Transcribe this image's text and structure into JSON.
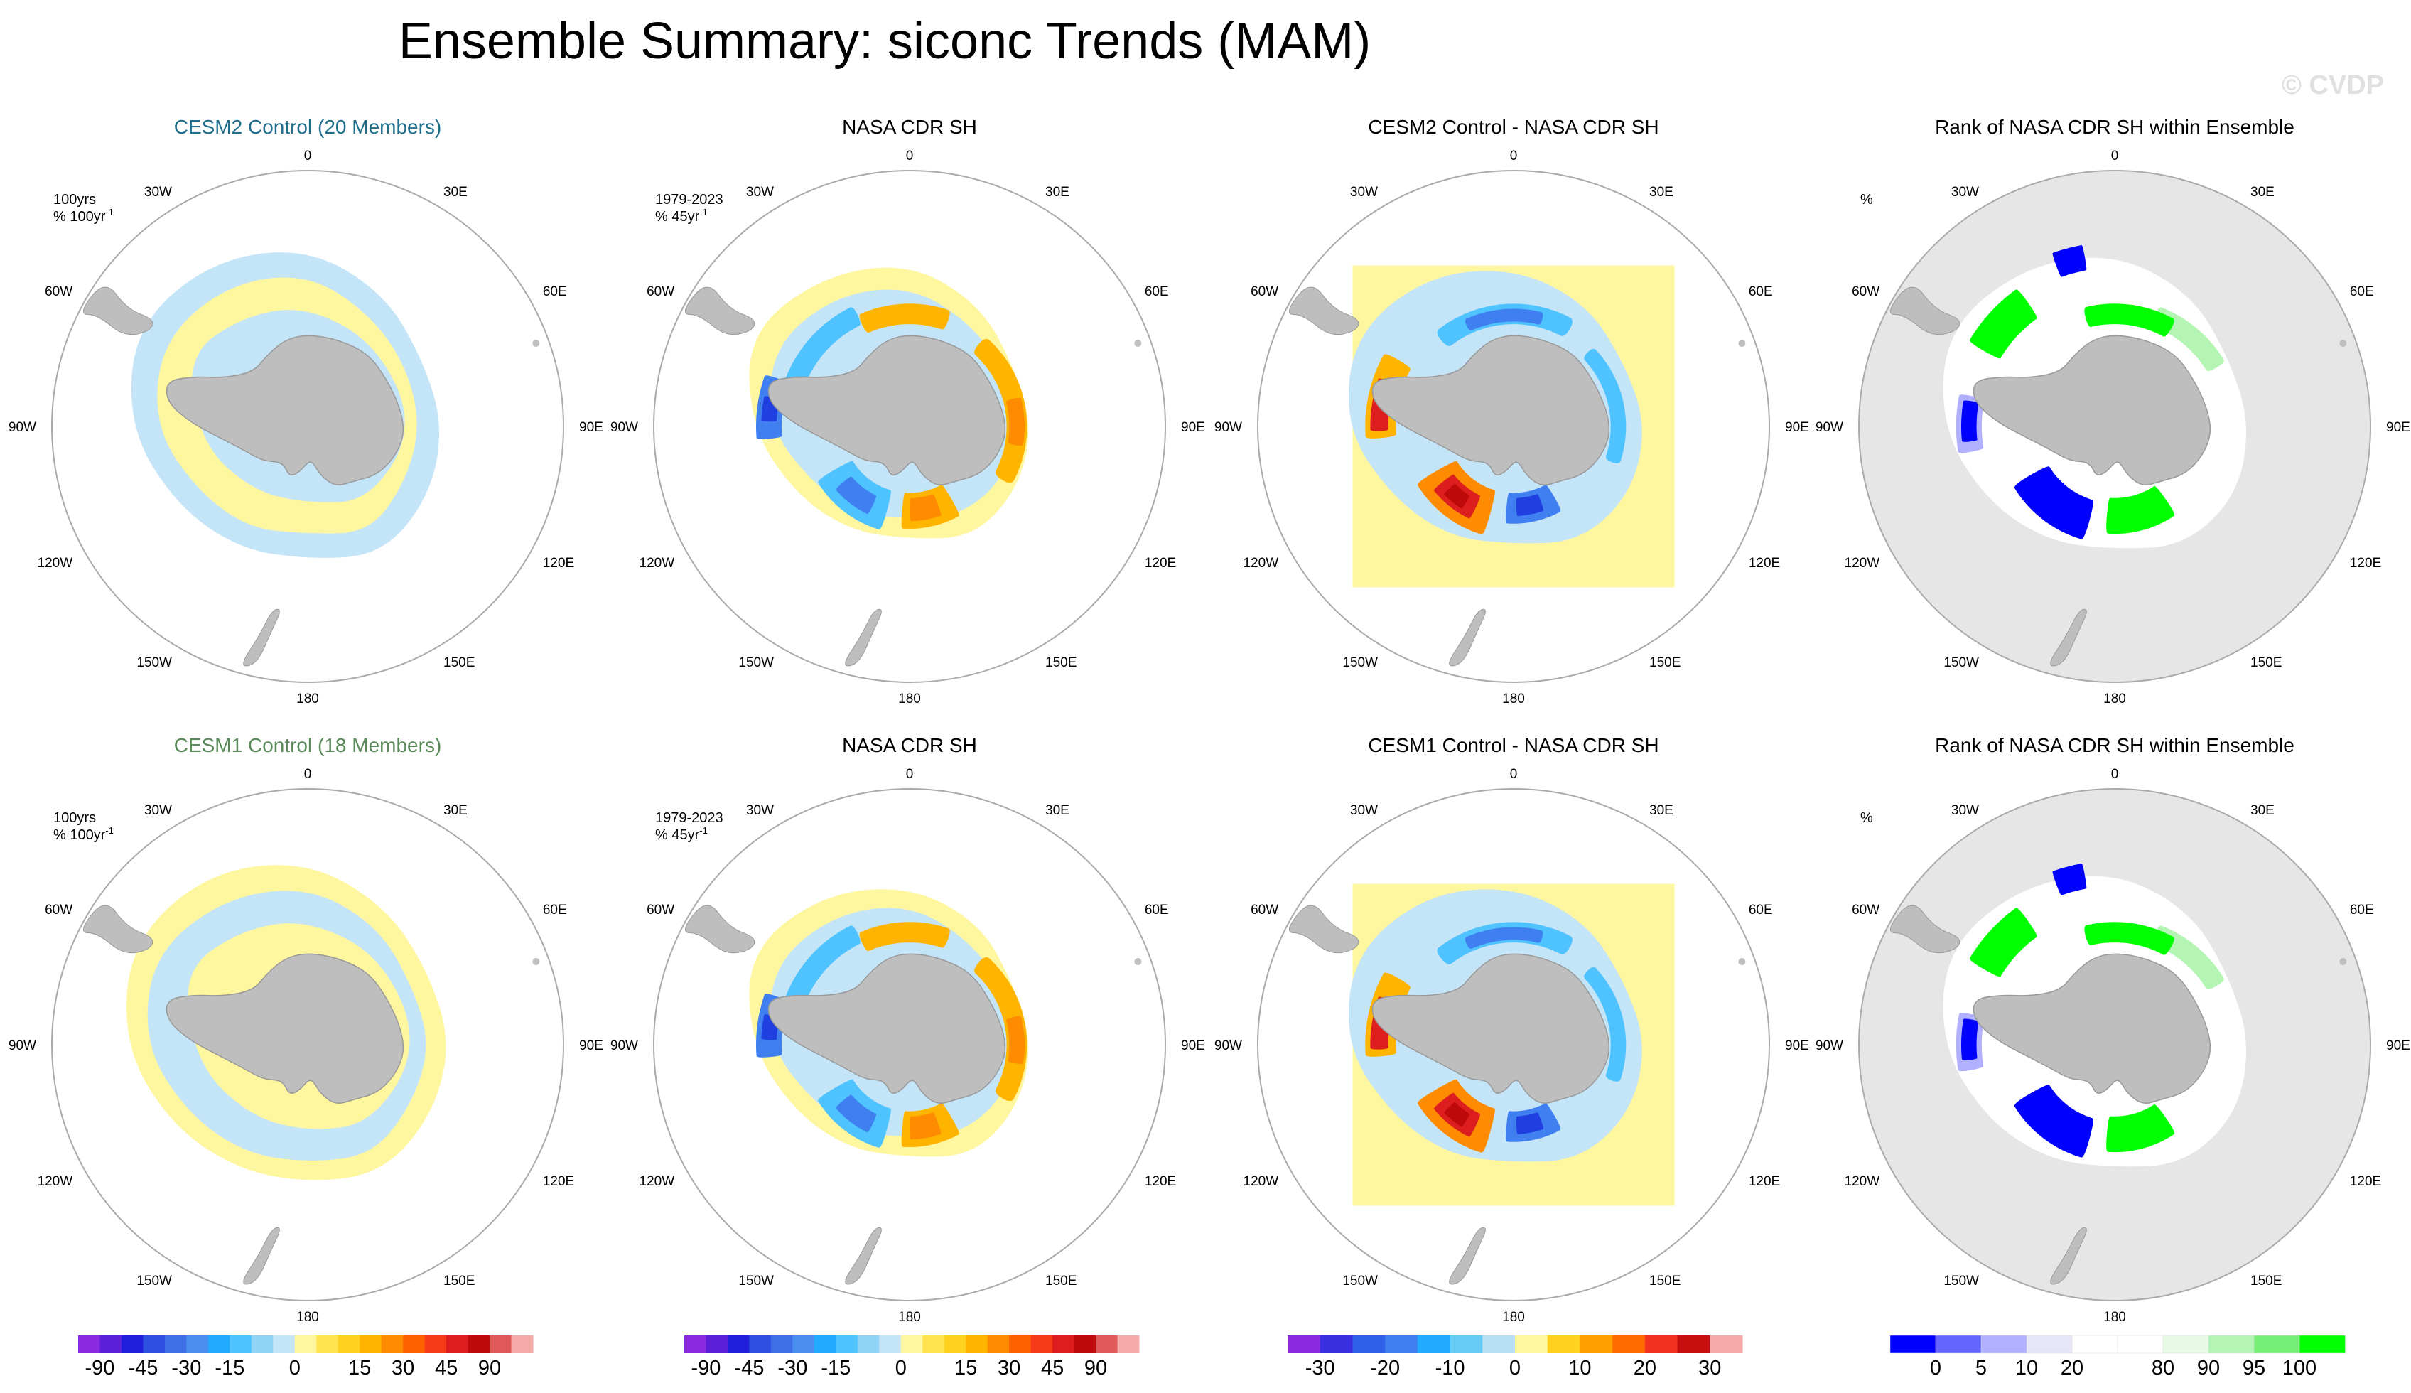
{
  "figure": {
    "title": "Ensemble Summary: siconc Trends (MAM)",
    "watermark": "© CVDP"
  },
  "chart_data": [
    {
      "type": "heatmap",
      "projection": "south-polar-stereographic",
      "panels": [
        {
          "row": 0,
          "col": 0,
          "title": "CESM2 Control (20 Members)",
          "title_color": "#1f6e8c",
          "kind": "trend",
          "note1": "100yrs",
          "note2": "% 100yr",
          "note2_sup": "-1"
        },
        {
          "row": 0,
          "col": 1,
          "title": "NASA CDR SH",
          "title_color": "#000000",
          "kind": "obs",
          "note1": "1979-2023",
          "note2": "% 45yr",
          "note2_sup": "-1"
        },
        {
          "row": 0,
          "col": 2,
          "title": "CESM2 Control - NASA CDR SH",
          "title_color": "#000000",
          "kind": "diff"
        },
        {
          "row": 0,
          "col": 3,
          "title": "Rank of NASA CDR SH within Ensemble",
          "title_color": "#000000",
          "kind": "rank",
          "note1": "%"
        },
        {
          "row": 1,
          "col": 0,
          "title": "CESM1 Control (18 Members)",
          "title_color": "#5a8a5a",
          "kind": "trend",
          "note1": "100yrs",
          "note2": "% 100yr",
          "note2_sup": "-1"
        },
        {
          "row": 1,
          "col": 1,
          "title": "NASA CDR SH",
          "title_color": "#000000",
          "kind": "obs",
          "note1": "1979-2023",
          "note2": "% 45yr",
          "note2_sup": "-1"
        },
        {
          "row": 1,
          "col": 2,
          "title": "CESM1 Control - NASA CDR SH",
          "title_color": "#000000",
          "kind": "diff"
        },
        {
          "row": 1,
          "col": 3,
          "title": "Rank of NASA CDR SH within Ensemble",
          "title_color": "#000000",
          "kind": "rank",
          "note1": "%"
        }
      ],
      "longitude_labels": [
        {
          "lon": 0,
          "label": "0"
        },
        {
          "lon": 30,
          "label": "30E"
        },
        {
          "lon": 60,
          "label": "60E"
        },
        {
          "lon": 90,
          "label": "90E"
        },
        {
          "lon": 120,
          "label": "120E"
        },
        {
          "lon": 150,
          "label": "150E"
        },
        {
          "lon": 180,
          "label": "180"
        },
        {
          "lon": -150,
          "label": "150W"
        },
        {
          "lon": -120,
          "label": "120W"
        },
        {
          "lon": -90,
          "label": "90W"
        },
        {
          "lon": -60,
          "label": "60W"
        },
        {
          "lon": -30,
          "label": "30W"
        }
      ],
      "colorbars": [
        {
          "name": "trend",
          "colors": [
            "#8a2be2",
            "#5a1fd6",
            "#1f1fdc",
            "#2f4fe0",
            "#3f6fe6",
            "#4a8ff0",
            "#22aaff",
            "#4fc3ff",
            "#8fd3f5",
            "#c4e4f7",
            "#fff6a0",
            "#ffe44f",
            "#ffd21f",
            "#ffb400",
            "#ff8c00",
            "#ff6000",
            "#f53a1a",
            "#dc1e1e",
            "#be0a0a",
            "#e05a5a",
            "#f5aaaa"
          ],
          "ticks": [
            {
              "value": -90,
              "label": "-90",
              "pos": 1
            },
            {
              "value": -45,
              "label": "-45",
              "pos": 3
            },
            {
              "value": -30,
              "label": "-30",
              "pos": 5
            },
            {
              "value": -15,
              "label": "-15",
              "pos": 7
            },
            {
              "value": 0,
              "label": "0",
              "pos": 10
            },
            {
              "value": 15,
              "label": "15",
              "pos": 13
            },
            {
              "value": 30,
              "label": "30",
              "pos": 15
            },
            {
              "value": 45,
              "label": "45",
              "pos": 17
            },
            {
              "value": 90,
              "label": "90",
              "pos": 19
            }
          ]
        },
        {
          "name": "diff",
          "colors": [
            "#8a2be2",
            "#3a2fe0",
            "#2f5fe6",
            "#3f7ff0",
            "#22aaff",
            "#66ccf5",
            "#b8e0f5",
            "#fff6a0",
            "#ffd21f",
            "#ffa000",
            "#ff6a00",
            "#f0321e",
            "#c80f0f",
            "#f5aaaa"
          ],
          "ticks": [
            {
              "value": -30,
              "label": "-30",
              "pos": 1
            },
            {
              "value": -20,
              "label": "-20",
              "pos": 3
            },
            {
              "value": -10,
              "label": "-10",
              "pos": 5
            },
            {
              "value": 0,
              "label": "0",
              "pos": 7
            },
            {
              "value": 10,
              "label": "10",
              "pos": 9
            },
            {
              "value": 20,
              "label": "20",
              "pos": 11
            },
            {
              "value": 30,
              "label": "30",
              "pos": 13
            }
          ]
        },
        {
          "name": "rank",
          "colors": [
            "#0000ff",
            "#6464ff",
            "#b0b0ff",
            "#e6e6fa",
            "#ffffff",
            "#ffffff",
            "#e6fae6",
            "#b4f5b4",
            "#78f078",
            "#00ff00"
          ],
          "ticks": [
            {
              "value": 0,
              "label": "0",
              "pos": 1
            },
            {
              "value": 5,
              "label": "5",
              "pos": 2
            },
            {
              "value": 10,
              "label": "10",
              "pos": 3
            },
            {
              "value": 20,
              "label": "20",
              "pos": 4
            },
            {
              "value": 80,
              "label": "80",
              "pos": 6
            },
            {
              "value": 90,
              "label": "90",
              "pos": 7
            },
            {
              "value": 95,
              "label": "95",
              "pos": 8
            },
            {
              "value": 100,
              "label": "100",
              "pos": 9
            }
          ]
        }
      ],
      "colorbar_assignment": [
        "trend",
        "trend",
        "diff",
        "rank"
      ],
      "colors": {
        "land": "#bebebe",
        "pos_light": "#fff6a0",
        "neg_light": "#c4e4f7",
        "cyan": "#4fc3ff",
        "blue": "#3f7ff0",
        "deep_blue": "#1f3fe0",
        "orange": "#ffb400",
        "dark_orange": "#ff8c00",
        "red": "#dc1e1e",
        "dark_red": "#be0a0a",
        "rank_low": "#0000ff",
        "rank_mid": "#b0b0ff",
        "rank_high": "#00ff00",
        "rank_green_light": "#b4f5b4",
        "rank_bg": "#e6e6e6"
      }
    }
  ]
}
